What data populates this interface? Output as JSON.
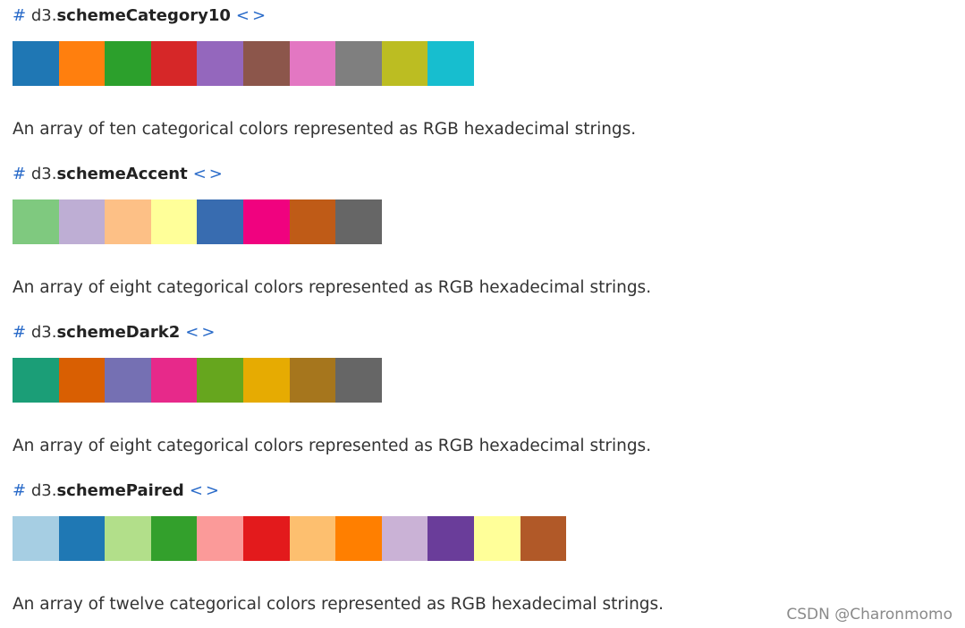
{
  "sections": [
    {
      "hash": "#",
      "prefix": "d3.",
      "name": "schemeCategory10",
      "source": "<>",
      "colors": [
        "#1f77b4",
        "#ff7f0e",
        "#2ca02c",
        "#d62728",
        "#9467bd",
        "#8c564b",
        "#e377c2",
        "#7f7f7f",
        "#bcbd22",
        "#17becf"
      ],
      "description": "An array of ten categorical colors represented as RGB hexadecimal strings."
    },
    {
      "hash": "#",
      "prefix": "d3.",
      "name": "schemeAccent",
      "source": "<>",
      "colors": [
        "#7fc97f",
        "#beaed4",
        "#fdc086",
        "#ffff99",
        "#386cb0",
        "#f0027f",
        "#bf5b17",
        "#666666"
      ],
      "description": "An array of eight categorical colors represented as RGB hexadecimal strings."
    },
    {
      "hash": "#",
      "prefix": "d3.",
      "name": "schemeDark2",
      "source": "<>",
      "colors": [
        "#1b9e77",
        "#d95f02",
        "#7570b3",
        "#e7298a",
        "#66a61e",
        "#e6ab02",
        "#a6761d",
        "#666666"
      ],
      "description": "An array of eight categorical colors represented as RGB hexadecimal strings."
    },
    {
      "hash": "#",
      "prefix": "d3.",
      "name": "schemePaired",
      "source": "<>",
      "colors": [
        "#a6cee3",
        "#1f78b4",
        "#b2df8a",
        "#33a02c",
        "#fb9a99",
        "#e31a1c",
        "#fdbf6f",
        "#ff7f00",
        "#cab2d6",
        "#6a3d9a",
        "#ffff99",
        "#b15928"
      ],
      "description": "An array of twelve categorical colors represented as RGB hexadecimal strings."
    }
  ],
  "watermark": "CSDN @Charonmomo"
}
